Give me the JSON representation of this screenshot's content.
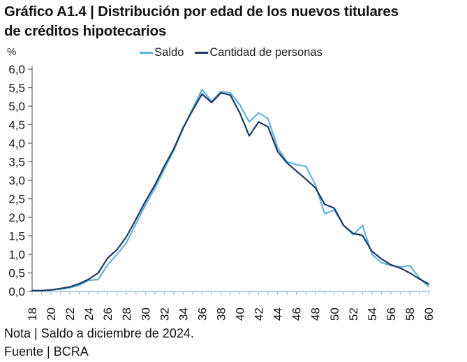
{
  "title": {
    "line1": "Gráfico A1.4 | Distribución por edad de los nuevos titulares",
    "line2": "de créditos hipotecarios"
  },
  "footer": {
    "note": "Nota | Saldo a diciembre de 2024.",
    "source": "Fuente | BCRA"
  },
  "chart_data": {
    "type": "line",
    "title": "Distribución por edad de los nuevos titulares de créditos hipotecarios",
    "xlabel": "",
    "ylabel": "%",
    "x": [
      18,
      19,
      20,
      21,
      22,
      23,
      24,
      25,
      26,
      27,
      28,
      29,
      30,
      31,
      32,
      33,
      34,
      35,
      36,
      37,
      38,
      39,
      40,
      41,
      42,
      43,
      44,
      45,
      46,
      47,
      48,
      49,
      50,
      51,
      52,
      53,
      54,
      55,
      56,
      57,
      58,
      59,
      60
    ],
    "series": [
      {
        "name": "Saldo",
        "color": "#5fb4dd",
        "values": [
          0.02,
          0.02,
          0.04,
          0.06,
          0.1,
          0.17,
          0.3,
          0.32,
          0.72,
          1.0,
          1.32,
          1.83,
          2.33,
          2.78,
          3.3,
          3.8,
          4.4,
          4.93,
          5.45,
          5.13,
          5.4,
          5.36,
          5.04,
          4.58,
          4.82,
          4.66,
          3.88,
          3.5,
          3.42,
          3.38,
          2.88,
          2.1,
          2.2,
          1.78,
          1.53,
          1.78,
          1.0,
          0.78,
          0.7,
          0.66,
          0.7,
          0.37,
          0.13
        ]
      },
      {
        "name": "Cantidad de personas",
        "color": "#1f3864",
        "values": [
          0.02,
          0.02,
          0.04,
          0.08,
          0.12,
          0.21,
          0.33,
          0.5,
          0.9,
          1.13,
          1.48,
          1.95,
          2.43,
          2.87,
          3.38,
          3.85,
          4.42,
          4.89,
          5.33,
          5.1,
          5.36,
          5.3,
          4.82,
          4.2,
          4.58,
          4.44,
          3.78,
          3.47,
          3.25,
          3.03,
          2.8,
          2.35,
          2.25,
          1.78,
          1.57,
          1.51,
          1.08,
          0.88,
          0.72,
          0.63,
          0.5,
          0.34,
          0.2
        ]
      }
    ],
    "ylim": [
      0,
      6
    ],
    "y_tick_step": 0.5,
    "y_tick_labels": [
      "0,0",
      "0,5",
      "1,0",
      "1,5",
      "2,0",
      "2,5",
      "3,0",
      "3,5",
      "4,0",
      "4,5",
      "5,0",
      "5,5",
      "6,0"
    ],
    "x_tick_labels": [
      "18",
      "20",
      "22",
      "24",
      "26",
      "28",
      "30",
      "32",
      "34",
      "36",
      "38",
      "40",
      "42",
      "44",
      "46",
      "48",
      "50",
      "52",
      "54",
      "56",
      "58",
      "60"
    ],
    "grid": false,
    "legend_position": "top"
  }
}
